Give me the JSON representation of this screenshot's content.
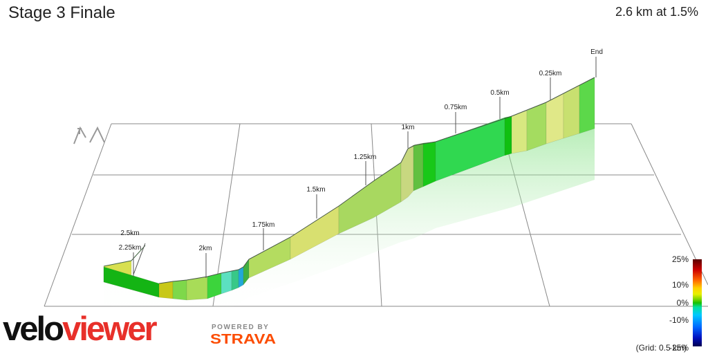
{
  "title": "Stage 3 Finale",
  "summary": "2.6 km at 1.5%",
  "logo": {
    "part1": "velo",
    "part2": "viewer"
  },
  "powered_by": {
    "line1": "POWERED BY",
    "line2": "STRAVA"
  },
  "grid_note": "(Grid: 0.5 km)",
  "colors": {
    "velo": "#111111",
    "viewer": "#e8302a",
    "strava": "#fc4c02"
  },
  "legend": {
    "scale": [
      {
        "label": "25%",
        "value": 25
      },
      {
        "label": "10%",
        "value": 10
      },
      {
        "label": "0%",
        "value": 0
      },
      {
        "label": "-10%",
        "value": -10
      },
      {
        "label": "-25%",
        "value": -25
      }
    ]
  },
  "chart_data": {
    "type": "area",
    "title": "Stage 3 Finale",
    "distance_markers": [
      {
        "label": "2.5km"
      },
      {
        "label": "2.25km"
      },
      {
        "label": "2km"
      },
      {
        "label": "1.75km"
      },
      {
        "label": "1.5km"
      },
      {
        "label": "1.25km"
      },
      {
        "label": "1km"
      },
      {
        "label": "0.75km"
      },
      {
        "label": "0.5km"
      },
      {
        "label": "0.25km"
      },
      {
        "label": "End"
      }
    ],
    "gradient_range_pct": [
      -25,
      25
    ],
    "grid": true
  }
}
